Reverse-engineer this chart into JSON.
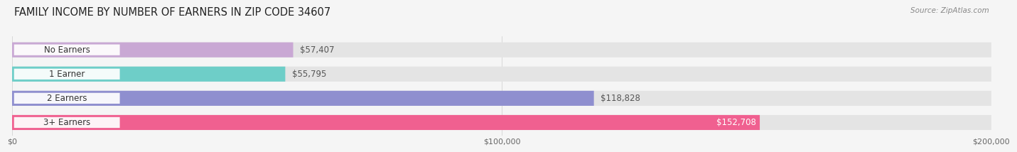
{
  "title": "FAMILY INCOME BY NUMBER OF EARNERS IN ZIP CODE 34607",
  "source": "Source: ZipAtlas.com",
  "categories": [
    "No Earners",
    "1 Earner",
    "2 Earners",
    "3+ Earners"
  ],
  "values": [
    57407,
    55795,
    118828,
    152708
  ],
  "labels": [
    "$57,407",
    "$55,795",
    "$118,828",
    "$152,708"
  ],
  "bar_colors": [
    "#c9a8d4",
    "#6ecec8",
    "#8f8fcf",
    "#f06090"
  ],
  "bar_bg_color": "#e4e4e4",
  "bg_color": "#f5f5f5",
  "xlim": [
    0,
    200000
  ],
  "xtick_labels": [
    "$0",
    "$100,000",
    "$200,000"
  ],
  "title_fontsize": 10.5,
  "label_fontsize": 8.5,
  "bar_height": 0.62
}
